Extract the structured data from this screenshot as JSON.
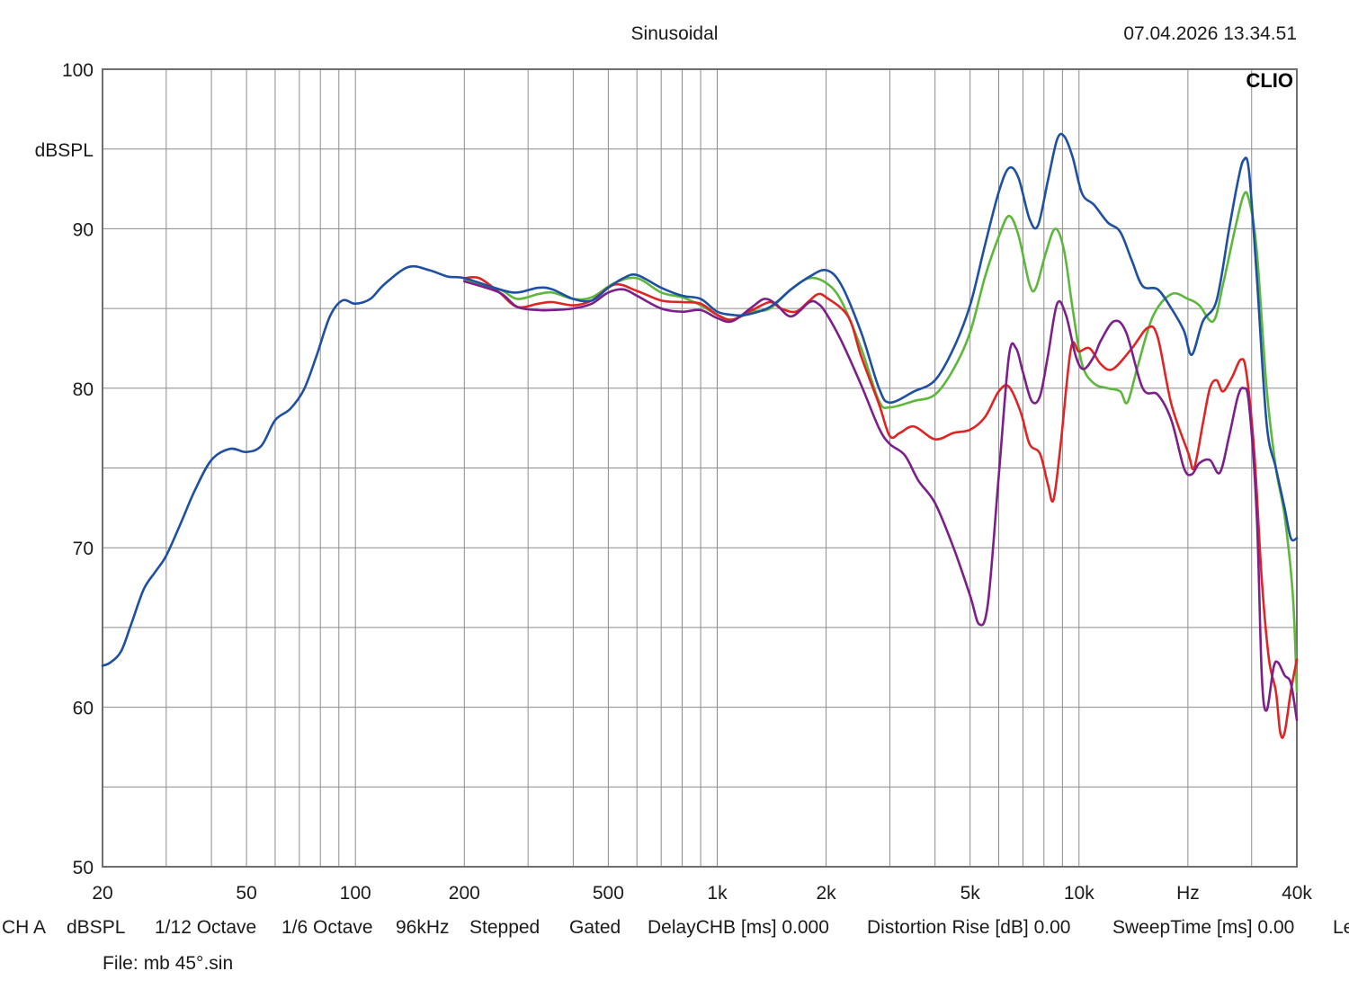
{
  "header": {
    "title": "Sinusoidal",
    "timestamp": "07.04.2026 13.34.51"
  },
  "brand": "CLIO",
  "info_bar": [
    "CH A",
    "dBSPL",
    "1/12 Octave",
    "1/6 Octave",
    "96kHz",
    "Stepped",
    "Gated",
    "DelayCHB [ms] 0.000",
    "Distortion Rise [dB] 0.00",
    "SweepTime [ms] 0.00",
    "Le"
  ],
  "file": {
    "label": "File:",
    "name": "mb 45°.sin"
  },
  "colors": {
    "grid": "#8c8c8c",
    "blue": "#1f4fa3",
    "green": "#5cb83a",
    "red": "#e02424",
    "purple": "#7d1f8a"
  },
  "chart_data": {
    "type": "line",
    "x_scale": "log",
    "xlim": [
      20,
      40000
    ],
    "ylim": [
      50,
      100
    ],
    "ylabel": "dBSPL",
    "x_ticks": [
      {
        "value": 20,
        "label": "20"
      },
      {
        "value": 50,
        "label": "50"
      },
      {
        "value": 100,
        "label": "100"
      },
      {
        "value": 200,
        "label": "200"
      },
      {
        "value": 500,
        "label": "500"
      },
      {
        "value": 1000,
        "label": "1k"
      },
      {
        "value": 2000,
        "label": "2k"
      },
      {
        "value": 5000,
        "label": "5k"
      },
      {
        "value": 10000,
        "label": "10k"
      },
      {
        "value": 20000,
        "label": "Hz"
      },
      {
        "value": 40000,
        "label": "40k"
      }
    ],
    "y_ticks": [
      {
        "value": 100,
        "label": "100"
      },
      {
        "value": 90,
        "label": "90"
      },
      {
        "value": 80,
        "label": "80"
      },
      {
        "value": 70,
        "label": "70"
      },
      {
        "value": 60,
        "label": "60"
      },
      {
        "value": 50,
        "label": "50"
      }
    ],
    "grid": true,
    "series": [
      {
        "color": "#5cb83a",
        "points": [
          [
            200,
            86.8
          ],
          [
            250,
            86.2
          ],
          [
            280,
            85.6
          ],
          [
            320,
            85.9
          ],
          [
            350,
            86.0
          ],
          [
            400,
            85.6
          ],
          [
            450,
            85.7
          ],
          [
            520,
            86.6
          ],
          [
            600,
            86.9
          ],
          [
            700,
            86.0
          ],
          [
            800,
            85.7
          ],
          [
            900,
            85.2
          ],
          [
            1000,
            84.6
          ],
          [
            1100,
            84.3
          ],
          [
            1250,
            84.8
          ],
          [
            1400,
            85.0
          ],
          [
            1600,
            86.2
          ],
          [
            1800,
            86.9
          ],
          [
            2000,
            86.6
          ],
          [
            2200,
            85.5
          ],
          [
            2500,
            82.5
          ],
          [
            2800,
            79.2
          ],
          [
            3000,
            78.8
          ],
          [
            3500,
            79.2
          ],
          [
            4000,
            79.6
          ],
          [
            4500,
            81.2
          ],
          [
            5000,
            83.5
          ],
          [
            5500,
            87.0
          ],
          [
            6000,
            89.5
          ],
          [
            6400,
            90.8
          ],
          [
            6800,
            89.6
          ],
          [
            7300,
            86.5
          ],
          [
            7600,
            86.3
          ],
          [
            8100,
            88.5
          ],
          [
            8600,
            90.0
          ],
          [
            9100,
            88.6
          ],
          [
            9600,
            85.0
          ],
          [
            10200,
            81.5
          ],
          [
            11000,
            80.3
          ],
          [
            12000,
            80.0
          ],
          [
            13000,
            79.8
          ],
          [
            13600,
            79.1
          ],
          [
            14500,
            81.3
          ],
          [
            16000,
            84.5
          ],
          [
            18000,
            85.9
          ],
          [
            20000,
            85.6
          ],
          [
            21500,
            85.2
          ],
          [
            23500,
            84.2
          ],
          [
            25000,
            86.5
          ],
          [
            27000,
            90.0
          ],
          [
            28500,
            92.1
          ],
          [
            29500,
            91.8
          ],
          [
            31000,
            88.6
          ],
          [
            33000,
            80.0
          ],
          [
            35000,
            75.0
          ],
          [
            37000,
            72.0
          ],
          [
            39000,
            67.0
          ],
          [
            40000,
            61.0
          ]
        ]
      },
      {
        "color": "#e02424",
        "points": [
          [
            200,
            86.9
          ],
          [
            220,
            86.9
          ],
          [
            250,
            86.0
          ],
          [
            280,
            85.1
          ],
          [
            320,
            85.3
          ],
          [
            350,
            85.4
          ],
          [
            400,
            85.2
          ],
          [
            450,
            85.5
          ],
          [
            520,
            86.5
          ],
          [
            600,
            86.1
          ],
          [
            700,
            85.5
          ],
          [
            800,
            85.4
          ],
          [
            900,
            85.3
          ],
          [
            1000,
            84.6
          ],
          [
            1100,
            84.3
          ],
          [
            1250,
            84.9
          ],
          [
            1400,
            85.4
          ],
          [
            1500,
            85.0
          ],
          [
            1650,
            84.8
          ],
          [
            1800,
            85.5
          ],
          [
            1900,
            85.9
          ],
          [
            2000,
            85.7
          ],
          [
            2300,
            84.5
          ],
          [
            2500,
            82.0
          ],
          [
            2800,
            79.0
          ],
          [
            3000,
            77.0
          ],
          [
            3200,
            77.2
          ],
          [
            3500,
            77.6
          ],
          [
            4000,
            76.8
          ],
          [
            4500,
            77.2
          ],
          [
            5000,
            77.4
          ],
          [
            5500,
            78.2
          ],
          [
            6000,
            79.8
          ],
          [
            6400,
            80.1
          ],
          [
            6900,
            78.5
          ],
          [
            7300,
            76.5
          ],
          [
            7800,
            75.9
          ],
          [
            8200,
            74.0
          ],
          [
            8500,
            73.0
          ],
          [
            8900,
            76.5
          ],
          [
            9500,
            82.5
          ],
          [
            10000,
            82.3
          ],
          [
            10700,
            82.5
          ],
          [
            11500,
            81.5
          ],
          [
            12400,
            81.2
          ],
          [
            14000,
            82.5
          ],
          [
            15500,
            83.8
          ],
          [
            16500,
            83.2
          ],
          [
            18000,
            79.0
          ],
          [
            20000,
            76.0
          ],
          [
            20800,
            75.0
          ],
          [
            22000,
            77.8
          ],
          [
            23000,
            80.0
          ],
          [
            24000,
            80.5
          ],
          [
            25000,
            79.8
          ],
          [
            26500,
            80.7
          ],
          [
            28000,
            81.8
          ],
          [
            29000,
            81.0
          ],
          [
            30500,
            76.0
          ],
          [
            32000,
            68.0
          ],
          [
            33500,
            63.0
          ],
          [
            35000,
            61.0
          ],
          [
            36000,
            58.4
          ],
          [
            37000,
            58.4
          ],
          [
            38500,
            61.0
          ],
          [
            40000,
            63.0
          ]
        ]
      },
      {
        "color": "#7d1f8a",
        "points": [
          [
            200,
            86.7
          ],
          [
            250,
            86.0
          ],
          [
            280,
            85.1
          ],
          [
            320,
            84.9
          ],
          [
            350,
            84.9
          ],
          [
            400,
            85.0
          ],
          [
            450,
            85.3
          ],
          [
            500,
            86.0
          ],
          [
            550,
            86.2
          ],
          [
            600,
            85.8
          ],
          [
            700,
            85.0
          ],
          [
            800,
            84.8
          ],
          [
            900,
            84.9
          ],
          [
            1000,
            84.4
          ],
          [
            1100,
            84.2
          ],
          [
            1250,
            85.1
          ],
          [
            1350,
            85.6
          ],
          [
            1450,
            85.3
          ],
          [
            1600,
            84.5
          ],
          [
            1800,
            85.4
          ],
          [
            1900,
            85.3
          ],
          [
            2000,
            84.7
          ],
          [
            2200,
            83.0
          ],
          [
            2500,
            80.2
          ],
          [
            2800,
            77.5
          ],
          [
            3000,
            76.5
          ],
          [
            3300,
            75.8
          ],
          [
            3600,
            74.2
          ],
          [
            4000,
            72.8
          ],
          [
            4500,
            70.0
          ],
          [
            5000,
            67.0
          ],
          [
            5300,
            65.2
          ],
          [
            5600,
            66.5
          ],
          [
            6000,
            74.5
          ],
          [
            6400,
            82.0
          ],
          [
            6700,
            82.5
          ],
          [
            7000,
            81.0
          ],
          [
            7400,
            79.2
          ],
          [
            7800,
            79.5
          ],
          [
            8200,
            82.0
          ],
          [
            8700,
            85.3
          ],
          [
            9200,
            84.6
          ],
          [
            9800,
            82.0
          ],
          [
            10300,
            81.2
          ],
          [
            11000,
            82.0
          ],
          [
            11500,
            83.0
          ],
          [
            12500,
            84.2
          ],
          [
            13500,
            83.5
          ],
          [
            15000,
            80.0
          ],
          [
            16500,
            79.6
          ],
          [
            18000,
            78.0
          ],
          [
            19500,
            75.0
          ],
          [
            20500,
            74.6
          ],
          [
            21500,
            75.3
          ],
          [
            23000,
            75.5
          ],
          [
            24500,
            74.7
          ],
          [
            26000,
            77.0
          ],
          [
            27500,
            79.5
          ],
          [
            28500,
            80.0
          ],
          [
            29500,
            79.0
          ],
          [
            31000,
            72.0
          ],
          [
            32000,
            62.0
          ],
          [
            33000,
            59.8
          ],
          [
            34500,
            62.5
          ],
          [
            35500,
            62.8
          ],
          [
            37000,
            62.0
          ],
          [
            38500,
            61.5
          ],
          [
            40000,
            59.2
          ]
        ]
      },
      {
        "color": "#1f4fa3",
        "points": [
          [
            20,
            62.6
          ],
          [
            21,
            62.8
          ],
          [
            22.5,
            63.5
          ],
          [
            24,
            65.2
          ],
          [
            26,
            67.4
          ],
          [
            28,
            68.5
          ],
          [
            30,
            69.5
          ],
          [
            33,
            71.6
          ],
          [
            36,
            73.6
          ],
          [
            40,
            75.5
          ],
          [
            45,
            76.2
          ],
          [
            50,
            76.0
          ],
          [
            55,
            76.4
          ],
          [
            60,
            78.0
          ],
          [
            66,
            78.7
          ],
          [
            72,
            79.9
          ],
          [
            78,
            82.0
          ],
          [
            85,
            84.5
          ],
          [
            92,
            85.5
          ],
          [
            100,
            85.3
          ],
          [
            110,
            85.6
          ],
          [
            120,
            86.5
          ],
          [
            140,
            87.6
          ],
          [
            160,
            87.4
          ],
          [
            180,
            87.0
          ],
          [
            200,
            86.9
          ],
          [
            250,
            86.2
          ],
          [
            280,
            86.0
          ],
          [
            320,
            86.3
          ],
          [
            350,
            86.2
          ],
          [
            400,
            85.6
          ],
          [
            450,
            85.5
          ],
          [
            500,
            86.3
          ],
          [
            550,
            86.9
          ],
          [
            600,
            87.1
          ],
          [
            700,
            86.3
          ],
          [
            800,
            85.8
          ],
          [
            900,
            85.6
          ],
          [
            1000,
            84.8
          ],
          [
            1100,
            84.6
          ],
          [
            1200,
            84.6
          ],
          [
            1400,
            85.1
          ],
          [
            1600,
            86.2
          ],
          [
            1800,
            87.0
          ],
          [
            2000,
            87.4
          ],
          [
            2200,
            86.5
          ],
          [
            2500,
            83.5
          ],
          [
            2800,
            80.0
          ],
          [
            3000,
            79.1
          ],
          [
            3500,
            79.8
          ],
          [
            4000,
            80.5
          ],
          [
            4500,
            82.5
          ],
          [
            5000,
            85.2
          ],
          [
            5500,
            89.0
          ],
          [
            6000,
            92.3
          ],
          [
            6400,
            93.8
          ],
          [
            6800,
            93.2
          ],
          [
            7300,
            90.6
          ],
          [
            7700,
            90.2
          ],
          [
            8200,
            93.0
          ],
          [
            8700,
            95.6
          ],
          [
            9100,
            95.8
          ],
          [
            9600,
            94.5
          ],
          [
            10200,
            92.2
          ],
          [
            11000,
            91.5
          ],
          [
            12000,
            90.4
          ],
          [
            13000,
            89.8
          ],
          [
            14000,
            88.0
          ],
          [
            15000,
            86.4
          ],
          [
            16500,
            86.2
          ],
          [
            18000,
            85.0
          ],
          [
            19500,
            83.6
          ],
          [
            20500,
            82.1
          ],
          [
            22000,
            84.2
          ],
          [
            24000,
            85.5
          ],
          [
            26000,
            90.0
          ],
          [
            27500,
            93.0
          ],
          [
            28500,
            94.3
          ],
          [
            29500,
            93.6
          ],
          [
            31000,
            87.0
          ],
          [
            33000,
            77.8
          ],
          [
            35000,
            75.0
          ],
          [
            37000,
            72.5
          ],
          [
            38500,
            70.6
          ],
          [
            40000,
            70.6
          ]
        ]
      }
    ]
  }
}
